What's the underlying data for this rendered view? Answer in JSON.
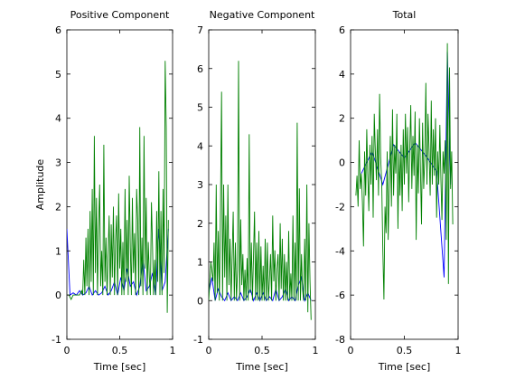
{
  "colors": {
    "green": "#008000",
    "blue": "#0000ff"
  },
  "chart_data": [
    {
      "type": "line",
      "title": "Positive Component",
      "xlabel": "Time [sec]",
      "ylabel": "Amplitude",
      "xlim": [
        0,
        1
      ],
      "ylim": [
        -1,
        6
      ],
      "xticks": [
        0,
        0.5,
        1
      ],
      "xtick_labels": [
        "0",
        "0.5",
        "1"
      ],
      "yticks": [
        -1,
        0,
        1,
        2,
        3,
        4,
        5,
        6
      ],
      "ytick_labels": [
        "-1",
        "0",
        "1",
        "2",
        "3",
        "4",
        "5",
        "6"
      ],
      "series": [
        {
          "color": "blue",
          "x": [
            0.0,
            0.03,
            0.06,
            0.09,
            0.12,
            0.15,
            0.18,
            0.21,
            0.24,
            0.27,
            0.3,
            0.33,
            0.36,
            0.39,
            0.42,
            0.45,
            0.48,
            0.51,
            0.54,
            0.57,
            0.6,
            0.63,
            0.66,
            0.69,
            0.72,
            0.75,
            0.78,
            0.81,
            0.84,
            0.87,
            0.9,
            0.93,
            0.96
          ],
          "y": [
            1.5,
            0.0,
            0.05,
            0.0,
            0.1,
            0.0,
            0.05,
            0.2,
            0.0,
            0.1,
            0.0,
            0.05,
            0.2,
            0.0,
            0.1,
            0.3,
            0.0,
            0.4,
            0.1,
            0.6,
            0.2,
            0.3,
            0.0,
            0.2,
            0.8,
            0.1,
            0.2,
            0.5,
            0.0,
            1.5,
            0.1,
            0.3,
            1.5
          ]
        },
        {
          "color": "green",
          "x": [
            0.0,
            0.02,
            0.04,
            0.06,
            0.08,
            0.1,
            0.12,
            0.14,
            0.15,
            0.16,
            0.17,
            0.18,
            0.19,
            0.2,
            0.21,
            0.22,
            0.23,
            0.24,
            0.25,
            0.26,
            0.27,
            0.28,
            0.29,
            0.3,
            0.31,
            0.32,
            0.33,
            0.34,
            0.35,
            0.36,
            0.37,
            0.38,
            0.39,
            0.4,
            0.41,
            0.42,
            0.43,
            0.44,
            0.45,
            0.46,
            0.47,
            0.48,
            0.49,
            0.5,
            0.51,
            0.52,
            0.53,
            0.54,
            0.55,
            0.56,
            0.57,
            0.58,
            0.59,
            0.6,
            0.61,
            0.62,
            0.63,
            0.64,
            0.65,
            0.66,
            0.67,
            0.68,
            0.69,
            0.7,
            0.71,
            0.72,
            0.73,
            0.74,
            0.75,
            0.76,
            0.77,
            0.78,
            0.79,
            0.8,
            0.81,
            0.82,
            0.83,
            0.84,
            0.85,
            0.86,
            0.87,
            0.88,
            0.89,
            0.9,
            0.91,
            0.92,
            0.93,
            0.94,
            0.95,
            0.96
          ],
          "y": [
            0.0,
            0.0,
            -0.1,
            0.0,
            0.0,
            0.0,
            0.0,
            0.1,
            0.0,
            0.8,
            0.0,
            1.3,
            0.2,
            1.5,
            0.0,
            1.9,
            0.3,
            2.4,
            0.0,
            3.6,
            0.5,
            2.2,
            0.0,
            1.5,
            2.5,
            0.2,
            1.0,
            0.0,
            3.4,
            0.3,
            1.3,
            0.0,
            0.9,
            1.8,
            0.0,
            1.6,
            0.4,
            2.0,
            0.0,
            1.2,
            1.8,
            0.0,
            2.3,
            0.6,
            1.5,
            0.0,
            1.2,
            0.0,
            2.4,
            0.3,
            1.7,
            0.0,
            2.7,
            1.1,
            0.0,
            2.2,
            0.5,
            1.4,
            0.0,
            2.4,
            1.7,
            0.0,
            3.8,
            0.2,
            1.3,
            0.0,
            3.6,
            0.6,
            2.2,
            0.0,
            1.2,
            0.4,
            0.0,
            2.1,
            1.1,
            0.0,
            0.8,
            0.0,
            1.9,
            0.3,
            2.8,
            0.0,
            1.9,
            0.0,
            2.4,
            0.5,
            5.3,
            3.8,
            -0.4,
            1.7
          ]
        }
      ]
    },
    {
      "type": "line",
      "title": "Negative Component",
      "xlabel": "Time [sec]",
      "xlim": [
        0,
        1
      ],
      "ylim": [
        -1,
        7
      ],
      "xticks": [
        0,
        0.5,
        1
      ],
      "xtick_labels": [
        "0",
        "0.5",
        "1"
      ],
      "yticks": [
        -1,
        0,
        1,
        2,
        3,
        4,
        5,
        6,
        7
      ],
      "ytick_labels": [
        "-1",
        "0",
        "1",
        "2",
        "3",
        "4",
        "5",
        "6",
        "7"
      ],
      "series": [
        {
          "color": "blue",
          "x": [
            0.0,
            0.03,
            0.06,
            0.09,
            0.12,
            0.15,
            0.18,
            0.21,
            0.24,
            0.27,
            0.3,
            0.33,
            0.36,
            0.39,
            0.42,
            0.45,
            0.48,
            0.51,
            0.54,
            0.57,
            0.6,
            0.63,
            0.66,
            0.69,
            0.72,
            0.75,
            0.78,
            0.81,
            0.84,
            0.87,
            0.9,
            0.93,
            0.96
          ],
          "y": [
            0.2,
            0.6,
            0.0,
            0.3,
            0.1,
            0.0,
            0.2,
            0.0,
            0.1,
            0.0,
            0.2,
            0.0,
            0.1,
            0.3,
            0.0,
            0.2,
            0.0,
            0.2,
            0.0,
            0.1,
            0.0,
            0.3,
            0.0,
            0.1,
            0.3,
            0.0,
            0.1,
            0.0,
            0.4,
            0.6,
            0.0,
            0.2,
            0.0
          ]
        },
        {
          "color": "green",
          "x": [
            0.0,
            0.02,
            0.04,
            0.05,
            0.06,
            0.07,
            0.08,
            0.09,
            0.1,
            0.11,
            0.12,
            0.13,
            0.14,
            0.15,
            0.16,
            0.17,
            0.18,
            0.19,
            0.2,
            0.21,
            0.22,
            0.23,
            0.24,
            0.25,
            0.26,
            0.27,
            0.28,
            0.29,
            0.3,
            0.31,
            0.32,
            0.33,
            0.34,
            0.35,
            0.36,
            0.37,
            0.38,
            0.39,
            0.4,
            0.41,
            0.42,
            0.43,
            0.44,
            0.45,
            0.46,
            0.47,
            0.48,
            0.49,
            0.5,
            0.51,
            0.52,
            0.53,
            0.54,
            0.55,
            0.56,
            0.57,
            0.58,
            0.59,
            0.6,
            0.61,
            0.62,
            0.63,
            0.64,
            0.65,
            0.66,
            0.67,
            0.68,
            0.69,
            0.7,
            0.71,
            0.72,
            0.73,
            0.74,
            0.75,
            0.76,
            0.77,
            0.78,
            0.79,
            0.8,
            0.81,
            0.82,
            0.83,
            0.84,
            0.85,
            0.86,
            0.87,
            0.88,
            0.89,
            0.9,
            0.91,
            0.92,
            0.93,
            0.94,
            0.95,
            0.96
          ],
          "y": [
            0.0,
            1.0,
            0.5,
            1.5,
            0.0,
            3.0,
            0.2,
            1.8,
            0.0,
            2.4,
            5.4,
            0.0,
            3.0,
            0.6,
            2.2,
            0.0,
            3.0,
            0.4,
            1.6,
            0.0,
            1.2,
            2.3,
            0.0,
            1.5,
            0.0,
            0.8,
            6.2,
            0.0,
            2.1,
            0.4,
            1.2,
            0.0,
            0.8,
            0.0,
            1.1,
            0.0,
            4.3,
            0.2,
            1.5,
            0.0,
            1.2,
            2.3,
            0.0,
            1.5,
            0.0,
            1.8,
            0.0,
            1.4,
            0.0,
            0.9,
            0.0,
            1.6,
            0.0,
            1.5,
            0.0,
            0.6,
            1.2,
            0.0,
            2.2,
            0.5,
            1.3,
            0.0,
            0.8,
            1.2,
            0.0,
            2.0,
            0.3,
            1.6,
            0.0,
            1.2,
            0.0,
            1.0,
            0.0,
            1.8,
            0.0,
            0.7,
            0.0,
            2.2,
            0.0,
            1.5,
            0.0,
            4.6,
            0.0,
            2.9,
            0.0,
            1.2,
            0.3,
            0.0,
            1.6,
            0.0,
            3.0,
            -0.3,
            2.0,
            0.5,
            -0.5
          ]
        }
      ]
    },
    {
      "type": "line",
      "title": "Total",
      "xlabel": "Time [sec]",
      "xlim": [
        0,
        1
      ],
      "ylim": [
        -8,
        6
      ],
      "xticks": [
        0,
        0.5,
        1
      ],
      "xtick_labels": [
        "0",
        "0.5",
        "1"
      ],
      "yticks": [
        -8,
        -6,
        -4,
        -2,
        0,
        2,
        4,
        6
      ],
      "ytick_labels": [
        "-8",
        "-6",
        "-4",
        "-2",
        "0",
        "2",
        "4",
        "6"
      ],
      "series": [
        {
          "color": "blue",
          "x": [
            0.1,
            0.2,
            0.3,
            0.4,
            0.5,
            0.6,
            0.7,
            0.8,
            0.87,
            0.9,
            0.93
          ],
          "y": [
            -0.5,
            0.5,
            -1.0,
            0.8,
            0.2,
            0.9,
            0.3,
            -0.4,
            -5.2,
            5.0,
            -1.0
          ]
        },
        {
          "color": "green",
          "x": [
            0.05,
            0.06,
            0.07,
            0.08,
            0.09,
            0.1,
            0.11,
            0.12,
            0.13,
            0.14,
            0.15,
            0.16,
            0.17,
            0.18,
            0.19,
            0.2,
            0.21,
            0.22,
            0.23,
            0.24,
            0.25,
            0.26,
            0.27,
            0.28,
            0.29,
            0.3,
            0.31,
            0.32,
            0.33,
            0.34,
            0.35,
            0.36,
            0.37,
            0.38,
            0.39,
            0.4,
            0.41,
            0.42,
            0.43,
            0.44,
            0.45,
            0.46,
            0.47,
            0.48,
            0.49,
            0.5,
            0.51,
            0.52,
            0.53,
            0.54,
            0.55,
            0.56,
            0.57,
            0.58,
            0.59,
            0.6,
            0.61,
            0.62,
            0.63,
            0.64,
            0.65,
            0.66,
            0.67,
            0.68,
            0.69,
            0.7,
            0.71,
            0.72,
            0.73,
            0.74,
            0.75,
            0.76,
            0.77,
            0.78,
            0.79,
            0.8,
            0.81,
            0.82,
            0.83,
            0.84,
            0.85,
            0.86,
            0.87,
            0.88,
            0.89,
            0.9,
            0.91,
            0.92,
            0.93,
            0.94,
            0.95
          ],
          "y": [
            -1.5,
            -0.6,
            -2.0,
            1.0,
            -1.2,
            -0.5,
            -1.8,
            -3.8,
            0.5,
            -1.5,
            1.5,
            -0.5,
            -2.2,
            0.8,
            -1.0,
            1.2,
            -2.5,
            2.2,
            0.5,
            -0.8,
            1.5,
            -1.5,
            3.1,
            0.2,
            -1.0,
            -4.0,
            -6.2,
            -2.0,
            -3.2,
            0.5,
            -3.5,
            -1.0,
            1.2,
            -2.0,
            2.4,
            -1.5,
            0.8,
            -0.5,
            2.2,
            -3.0,
            0.5,
            -1.5,
            0.8,
            -2.2,
            1.5,
            -1.0,
            2.2,
            -0.5,
            1.6,
            -1.8,
            0.5,
            2.6,
            -1.2,
            1.2,
            -0.6,
            2.3,
            -3.5,
            0.8,
            -1.4,
            2.0,
            -0.5,
            -2.8,
            1.8,
            -1.2,
            0.2,
            3.6,
            -1.0,
            2.2,
            0.5,
            -1.5,
            2.8,
            -1.0,
            1.5,
            -0.6,
            2.0,
            -2.5,
            0.5,
            -1.0,
            1.7,
            -0.8,
            -2.6,
            0.5,
            -0.5,
            1.0,
            -3.5,
            5.4,
            -5.5,
            4.3,
            -1.2,
            0.5,
            -2.8
          ]
        }
      ]
    }
  ]
}
